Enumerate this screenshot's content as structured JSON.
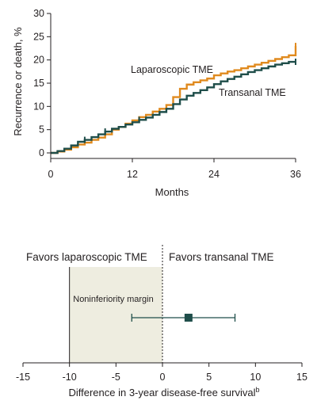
{
  "colors": {
    "laparoscopic": "#e08a1e",
    "transanal": "#1f4e4a",
    "margin_fill": "#eeede0",
    "axis": "#231f20"
  },
  "chart_data": [
    {
      "type": "line",
      "subtype": "kaplan-meier step curve",
      "xlabel": "Months",
      "ylabel": "Recurrence or death, %",
      "xlim": [
        0,
        36
      ],
      "ylim": [
        0,
        30
      ],
      "xticks": [
        "0",
        "12",
        "24",
        "36"
      ],
      "yticks": [
        "0",
        "5",
        "10",
        "15",
        "20",
        "25",
        "30"
      ],
      "grid": false,
      "series": [
        {
          "name": "Laparoscopic TME",
          "color": "#e08a1e",
          "x": [
            0,
            1,
            2,
            3,
            4,
            5,
            6,
            7,
            8,
            9,
            10,
            11,
            12,
            13,
            14,
            15,
            16,
            17,
            18,
            19,
            20,
            21,
            22,
            23,
            24,
            25,
            26,
            27,
            28,
            29,
            30,
            31,
            32,
            33,
            34,
            35,
            36
          ],
          "y": [
            0,
            0.3,
            0.7,
            1.2,
            1.8,
            2.2,
            2.8,
            3.3,
            4.0,
            5.0,
            5.6,
            6.3,
            7.0,
            7.7,
            8.2,
            8.9,
            9.5,
            10.3,
            12.0,
            13.8,
            14.7,
            15.2,
            15.6,
            16.0,
            16.7,
            17.1,
            17.5,
            17.8,
            18.2,
            18.6,
            19.0,
            19.4,
            19.8,
            20.2,
            20.6,
            21.0,
            23.0
          ],
          "censor_x": [
            36
          ],
          "censor_y": [
            23.0
          ]
        },
        {
          "name": "Transanal TME",
          "color": "#1f4e4a",
          "x": [
            0,
            1,
            2,
            3,
            4,
            5,
            6,
            7,
            8,
            9,
            10,
            11,
            12,
            13,
            14,
            15,
            16,
            17,
            18,
            19,
            20,
            21,
            22,
            23,
            24,
            25,
            26,
            27,
            28,
            29,
            30,
            31,
            32,
            33,
            34,
            35,
            36
          ],
          "y": [
            0,
            0.4,
            0.9,
            1.6,
            2.4,
            2.8,
            3.4,
            4.0,
            4.6,
            5.2,
            5.6,
            6.1,
            6.6,
            7.1,
            7.6,
            8.2,
            8.8,
            9.5,
            10.5,
            11.5,
            12.3,
            12.9,
            13.5,
            14.1,
            14.8,
            15.4,
            15.9,
            16.4,
            16.9,
            17.4,
            17.8,
            18.2,
            18.6,
            19.0,
            19.3,
            19.6,
            19.6
          ],
          "censor_x": [
            5,
            8,
            13,
            36
          ],
          "censor_y": [
            2.8,
            4.6,
            7.1,
            19.6
          ]
        }
      ]
    },
    {
      "type": "scatter",
      "subtype": "forest plot",
      "xlabel": "Difference in 3-year disease-free survival",
      "xlabel_superscript": "b",
      "xlim": [
        -15,
        15
      ],
      "xticks": [
        "-15",
        "-10",
        "-5",
        "0",
        "5",
        "10",
        "15"
      ],
      "grid": false,
      "favors_left": "Favors laparoscopic TME",
      "favors_right": "Favors transanal TME",
      "margin_label": "Noninferiority margin",
      "noninferiority_margin": [
        -10,
        0
      ],
      "estimate": 2.8,
      "ci": [
        -3.3,
        7.8
      ]
    }
  ]
}
